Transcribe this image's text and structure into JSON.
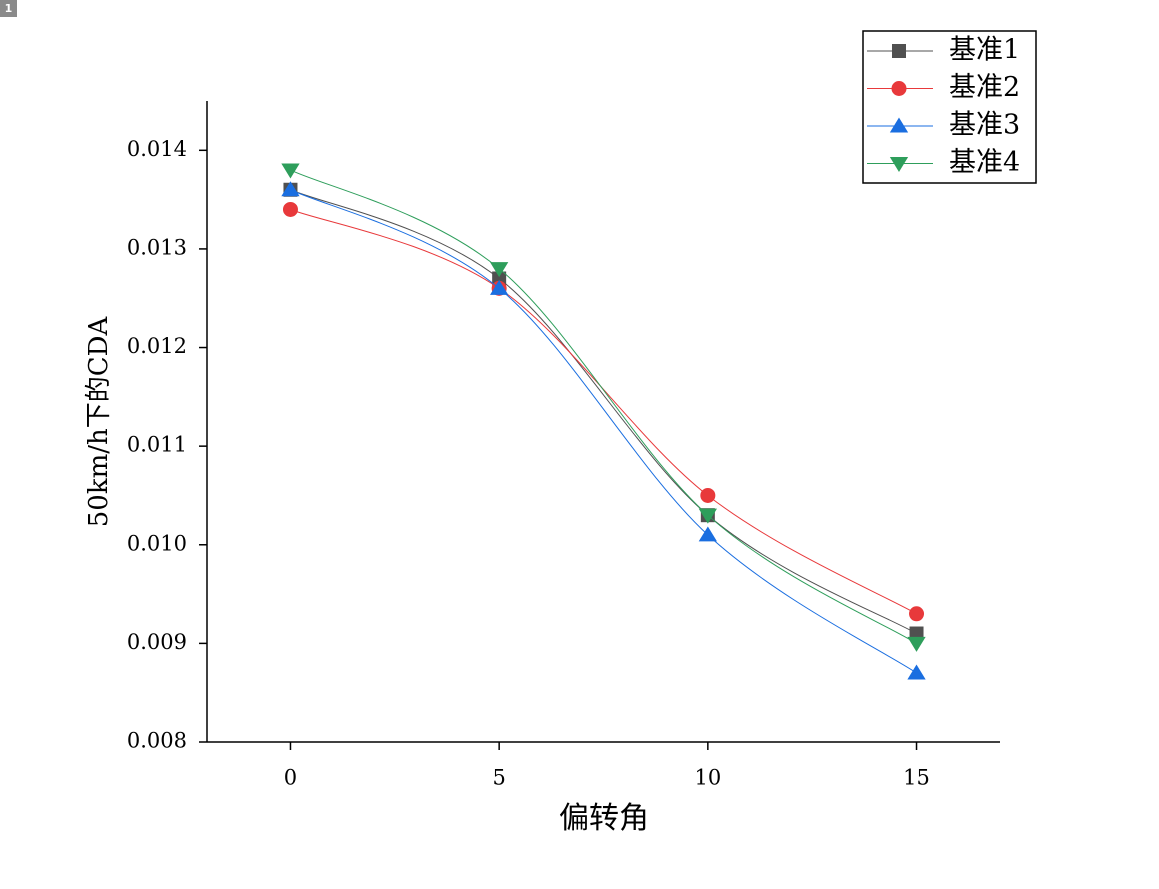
{
  "badge": "1",
  "chart_data": {
    "type": "line",
    "x": [
      0,
      5,
      10,
      15
    ],
    "xlabel": "偏转角",
    "ylabel": "50km/h下的CDA",
    "xlim": [
      -2,
      17
    ],
    "xticks": [
      0,
      5,
      10,
      15
    ],
    "ylim": [
      0.008,
      0.0145
    ],
    "yticks": [
      0.008,
      0.009,
      {
        "value": 0.01,
        "label": "0.010"
      },
      0.011,
      0.012,
      0.013,
      0.014
    ],
    "legend": "upper right",
    "series": [
      {
        "name": "基准1",
        "color": "#505050",
        "marker": "square",
        "values": [
          0.0136,
          0.0127,
          0.0103,
          0.0091
        ]
      },
      {
        "name": "基准2",
        "color": "#e8393b",
        "marker": "circle",
        "values": [
          0.0134,
          0.0126,
          0.0105,
          0.0093
        ]
      },
      {
        "name": "基准3",
        "color": "#1a6ee0",
        "marker": "triangle-up",
        "values": [
          0.0136,
          0.0126,
          0.0101,
          0.0087
        ]
      },
      {
        "name": "基准4",
        "color": "#2e9e5b",
        "marker": "triangle-down",
        "values": [
          0.0138,
          0.0128,
          0.0103,
          0.009
        ]
      }
    ]
  }
}
